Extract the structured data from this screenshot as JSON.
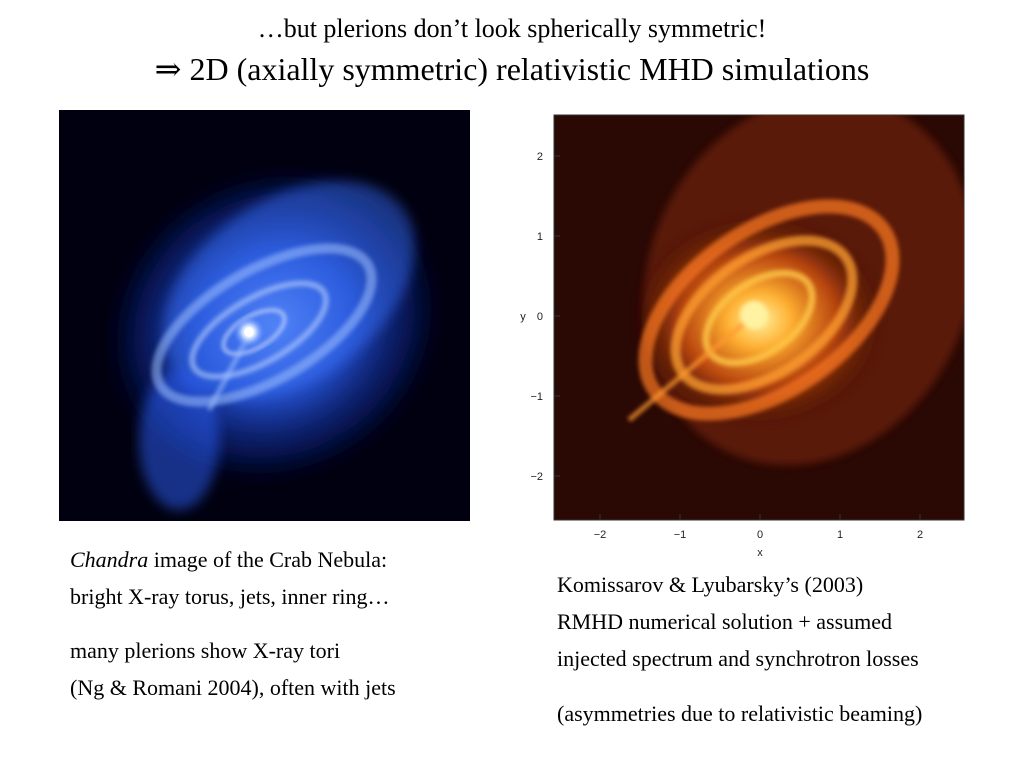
{
  "slide": {
    "title_line1": "…but plerions don’t look spherically symmetric!",
    "title_arrow": "⇒",
    "title_line2": "2D (axially symmetric) relativistic MHD simulations"
  },
  "left_caption": {
    "line1_italic": "Chandra",
    "line1_rest": " image of the Crab Nebula:",
    "line2": "bright X-ray torus, jets, inner ring…",
    "line3": "many plerions show X-ray tori",
    "line4": "(Ng & Romani 2004), often with jets"
  },
  "right_caption": {
    "line1": "Komissarov & Lyubarsky’s (2003)",
    "line2": "RMHD numerical solution + assumed",
    "line3": "injected spectrum and synchrotron losses",
    "line4": "(asymmetries due to relativistic beaming)"
  },
  "simulation_plot": {
    "x_ticks": [
      "−2",
      "−1",
      "0",
      "1",
      "2"
    ],
    "y_ticks": [
      "2",
      "1",
      "0",
      "−1",
      "−2"
    ],
    "x_label": "x",
    "y_label": "y",
    "colors": {
      "background": "#2a0804",
      "glow": "#ff8a1a",
      "core": "#fff2a0"
    }
  },
  "crab_image": {
    "colors": {
      "background": "#000010",
      "nebula": "#2d64ff",
      "core": "#e8f0ff"
    }
  }
}
